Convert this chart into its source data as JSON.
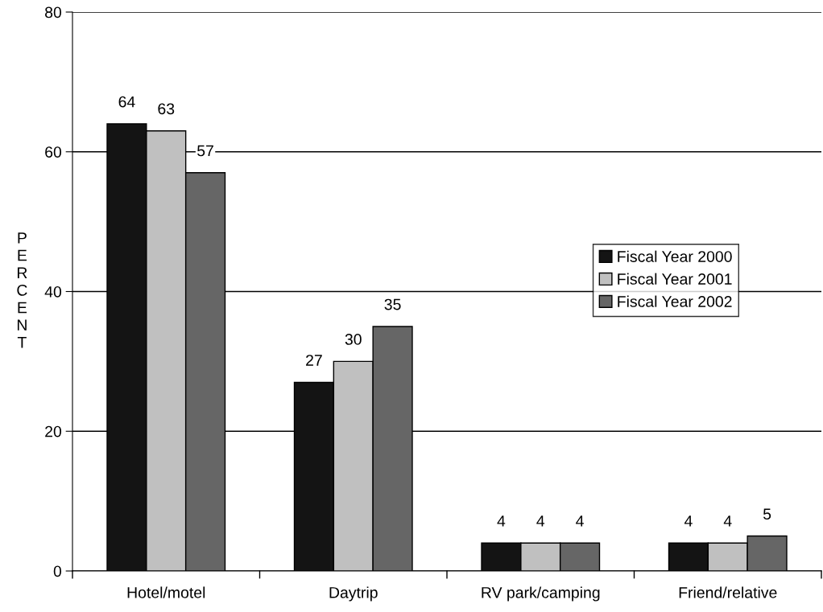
{
  "chart_data": {
    "type": "bar",
    "ylabel": "PERCENT",
    "categories": [
      "Hotel/motel",
      "Daytrip",
      "RV park/camping",
      "Friend/relative"
    ],
    "series": [
      {
        "name": "Fiscal Year 2000",
        "color": "#141414",
        "values": [
          64,
          27,
          4,
          4
        ]
      },
      {
        "name": "Fiscal Year 2001",
        "color": "#c0c0c0",
        "values": [
          63,
          30,
          4,
          4
        ]
      },
      {
        "name": "Fiscal Year 2002",
        "color": "#666666",
        "values": [
          57,
          35,
          4,
          5
        ]
      }
    ],
    "ylim": [
      0,
      80
    ],
    "yticks": [
      0,
      20,
      40,
      60,
      80
    ],
    "grid": "y",
    "legend": "right",
    "data_labels": true
  }
}
